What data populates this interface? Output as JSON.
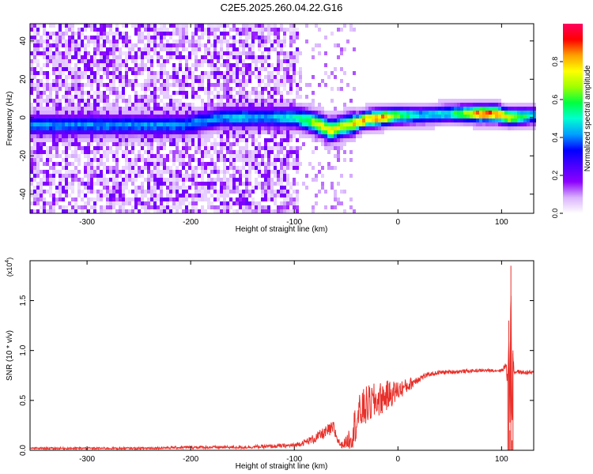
{
  "title": "C2E5.2025.260.04.22.G16",
  "chart_data": [
    {
      "type": "heatmap",
      "name": "spectrogram",
      "xlabel": "Height of straight line (km)",
      "ylabel": "Frequency (Hz)",
      "xlim": [
        -355,
        131
      ],
      "ylim": [
        -50,
        49
      ],
      "xticks": [
        -300,
        -200,
        -100,
        0,
        100
      ],
      "xtick_labels": [
        "-300",
        "-200",
        "-100",
        "0",
        "100"
      ],
      "yticks": [
        -40,
        -20,
        0,
        20,
        40
      ],
      "ytick_labels": [
        "-40",
        "-20",
        "0",
        "20",
        "40"
      ],
      "colorbar": {
        "label": "Normalized spectral amplitude",
        "range": [
          0.0,
          1.0
        ],
        "ticks": [
          0.0,
          0.2,
          0.4,
          0.6,
          0.8
        ],
        "tick_labels": [
          "0.0",
          "0.2",
          "0.4",
          "0.6",
          "0.8"
        ],
        "colormap": [
          "#ffffff",
          "#d9b3ff",
          "#8c00ff",
          "#4b00ff",
          "#0000ff",
          "#00a0ff",
          "#00ffd0",
          "#00ff40",
          "#a0ff00",
          "#ffff00",
          "#ffa000",
          "#ff0000",
          "#ff0060"
        ]
      },
      "noise_region": {
        "x_range": [
          -355,
          -95
        ],
        "level": 0.18
      },
      "ridge": [
        {
          "x": -205,
          "y": -4,
          "amp": 0.45
        },
        {
          "x": -170,
          "y": 0,
          "amp": 0.45
        },
        {
          "x": -155,
          "y": 0,
          "amp": 0.5
        },
        {
          "x": -130,
          "y": 0,
          "amp": 0.45
        },
        {
          "x": -100,
          "y": 0,
          "amp": 0.55
        },
        {
          "x": -85,
          "y": -2,
          "amp": 0.7
        },
        {
          "x": -75,
          "y": -4,
          "amp": 0.8
        },
        {
          "x": -65,
          "y": -7,
          "amp": 0.85
        },
        {
          "x": -55,
          "y": -5,
          "amp": 0.75
        },
        {
          "x": -40,
          "y": -3,
          "amp": 0.85
        },
        {
          "x": -30,
          "y": -1,
          "amp": 0.9
        },
        {
          "x": -15,
          "y": 0,
          "amp": 0.92
        },
        {
          "x": 0,
          "y": 1,
          "amp": 0.7
        },
        {
          "x": 20,
          "y": 1,
          "amp": 0.5
        },
        {
          "x": 50,
          "y": 2,
          "amp": 0.55
        },
        {
          "x": 80,
          "y": 2,
          "amp": 0.95
        },
        {
          "x": 95,
          "y": 2,
          "amp": 0.98
        },
        {
          "x": 108,
          "y": 0,
          "amp": 0.8
        },
        {
          "x": 131,
          "y": 1,
          "amp": 0.5
        }
      ]
    },
    {
      "type": "line",
      "name": "snr",
      "xlabel": "Height of straight line (km)",
      "ylabel": "SNR (10 * v/v)",
      "scale_label": "(x10",
      "scale_exponent": "4",
      "xlim": [
        -355,
        131
      ],
      "ylim": [
        0,
        1.9
      ],
      "xticks": [
        -300,
        -200,
        -100,
        0,
        100
      ],
      "xtick_labels": [
        "-300",
        "-200",
        "-100",
        "0",
        "100"
      ],
      "yticks": [
        0.0,
        0.5,
        1.0,
        1.5
      ],
      "ytick_labels": [
        "0.0",
        "0.5",
        "1.0",
        "1.5"
      ],
      "color": "#e8302a",
      "series": [
        {
          "name": "SNR",
          "x": [
            -355,
            -300,
            -250,
            -200,
            -150,
            -120,
            -100,
            -90,
            -80,
            -70,
            -62,
            -58,
            -55,
            -50,
            -45,
            -40,
            -35,
            -30,
            -20,
            -10,
            0,
            10,
            20,
            30,
            40,
            60,
            80,
            100,
            104,
            106,
            107,
            108,
            109,
            110,
            111,
            112,
            115,
            120,
            131
          ],
          "values": [
            0.02,
            0.02,
            0.02,
            0.03,
            0.03,
            0.04,
            0.05,
            0.08,
            0.12,
            0.18,
            0.22,
            0.1,
            0.05,
            0.08,
            0.15,
            0.3,
            0.4,
            0.45,
            0.5,
            0.55,
            0.6,
            0.65,
            0.72,
            0.76,
            0.78,
            0.79,
            0.8,
            0.8,
            0.85,
            0.7,
            1.3,
            0.2,
            1.85,
            0.1,
            1.0,
            0.78,
            0.79,
            0.78,
            0.78
          ],
          "noise_amp": [
            0.01,
            0.01,
            0.01,
            0.015,
            0.015,
            0.02,
            0.02,
            0.03,
            0.05,
            0.06,
            0.08,
            0.04,
            0.03,
            0.06,
            0.15,
            0.2,
            0.2,
            0.2,
            0.18,
            0.15,
            0.1,
            0.07,
            0.04,
            0.02,
            0.02,
            0.02,
            0.015,
            0.015,
            0.04,
            0.1,
            0.2,
            0.1,
            0.1,
            0.05,
            0.1,
            0.02,
            0.02,
            0.02,
            0.02
          ]
        }
      ]
    }
  ]
}
